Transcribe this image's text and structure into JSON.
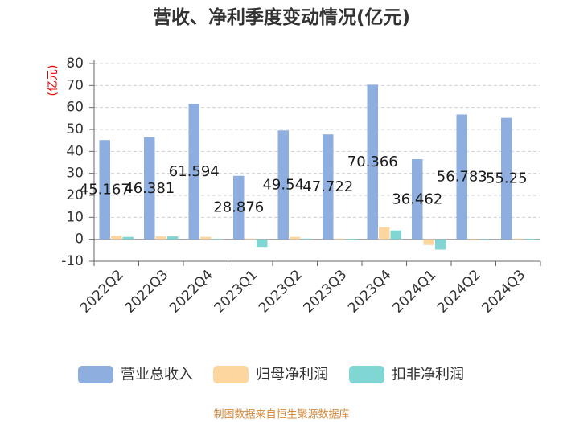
{
  "source": "制图数据来自恒生聚源数据库",
  "chart_data": {
    "type": "bar",
    "title": "营收、净利季度变动情况(亿元)",
    "xlabel": "",
    "ylabel": "(亿元)",
    "ylim": [
      -10,
      80
    ],
    "yticks": [
      -10,
      0,
      10,
      20,
      30,
      40,
      50,
      60,
      70,
      80
    ],
    "grid": true,
    "legend": "bottom",
    "categories": [
      "2022Q2",
      "2022Q3",
      "2022Q4",
      "2023Q1",
      "2023Q2",
      "2023Q3",
      "2023Q4",
      "2024Q1",
      "2024Q2",
      "2024Q3"
    ],
    "series": [
      {
        "name": "营业总收入",
        "color": "#8eaedf",
        "data_labels": true,
        "values": [
          45.167,
          46.381,
          61.594,
          28.876,
          49.54,
          47.722,
          70.366,
          36.462,
          56.783,
          55.25
        ]
      },
      {
        "name": "归母净利润",
        "color": "#fcd69e",
        "data_labels": false,
        "values": [
          1.6,
          1.3,
          1.1,
          0.3,
          1.1,
          0.3,
          5.5,
          -2.6,
          -0.5,
          0.3
        ]
      },
      {
        "name": "扣非净利润",
        "color": "#7fd6d3",
        "data_labels": false,
        "values": [
          1.1,
          1.3,
          0.2,
          -3.5,
          0.3,
          0.2,
          4.0,
          -4.7,
          -0.2,
          0.2
        ]
      }
    ]
  }
}
